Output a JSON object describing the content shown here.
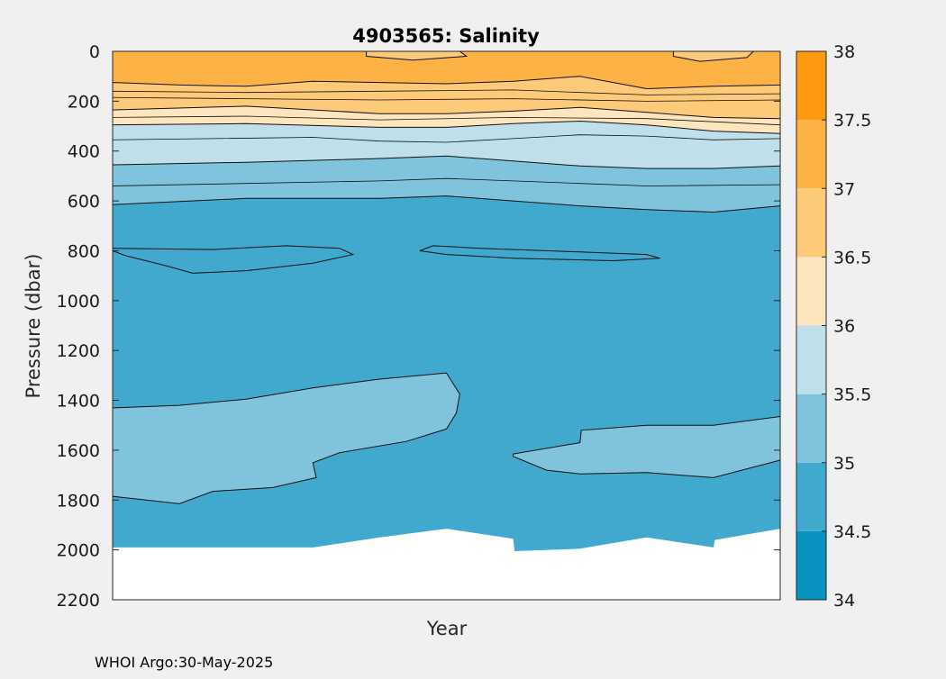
{
  "chart_data": {
    "type": "heatmap",
    "subtype": "filled-contour",
    "title": "4903565:  Salinity",
    "xlabel": "Year",
    "ylabel": "Pressure (dbar)",
    "ylim": [
      0,
      2200
    ],
    "y_reversed": true,
    "y_ticks": [
      0,
      200,
      400,
      600,
      800,
      1000,
      1200,
      1400,
      1600,
      1800,
      2000,
      2200
    ],
    "x_ticks": [],
    "x_domain": [
      0,
      100
    ],
    "grid": false,
    "colorbar": {
      "range": [
        34,
        38
      ],
      "ticks": [
        34,
        34.5,
        35,
        35.5,
        36,
        36.5,
        37,
        37.5,
        38
      ],
      "bins": [
        {
          "min": 34.0,
          "max": 34.5,
          "color": "#0892c0"
        },
        {
          "min": 34.5,
          "max": 35.0,
          "color": "#41a9ce"
        },
        {
          "min": 35.0,
          "max": 35.5,
          "color": "#80c3dd"
        },
        {
          "min": 35.5,
          "max": 36.0,
          "color": "#bfe0eb"
        },
        {
          "min": 36.0,
          "max": 36.5,
          "color": "#fde5bd"
        },
        {
          "min": 36.5,
          "max": 37.0,
          "color": "#fdca7a"
        },
        {
          "min": 37.0,
          "max": 37.5,
          "color": "#fdb246"
        },
        {
          "min": 37.5,
          "max": 38.0,
          "color": "#fd9a10"
        }
      ]
    },
    "bottom_profile": [
      [
        0,
        1990
      ],
      [
        30,
        1990
      ],
      [
        40,
        1950
      ],
      [
        50,
        1915
      ],
      [
        60,
        1955
      ],
      [
        60.2,
        2005
      ],
      [
        70,
        1995
      ],
      [
        80,
        1950
      ],
      [
        90,
        1990
      ],
      [
        90.2,
        1960
      ],
      [
        100,
        1915
      ]
    ],
    "deep_lens_left": [
      [
        0,
        1430
      ],
      [
        10,
        1420
      ],
      [
        20,
        1395
      ],
      [
        30,
        1350
      ],
      [
        40,
        1315
      ],
      [
        50,
        1290
      ],
      [
        52,
        1375
      ],
      [
        51.5,
        1450
      ],
      [
        50,
        1515
      ],
      [
        44,
        1565
      ],
      [
        34,
        1610
      ],
      [
        30,
        1650
      ],
      [
        30.5,
        1710
      ],
      [
        24,
        1750
      ],
      [
        15,
        1765
      ],
      [
        10,
        1815
      ],
      [
        5,
        1800
      ],
      [
        0,
        1785
      ]
    ],
    "deep_lens_right": [
      [
        60,
        1615
      ],
      [
        70,
        1570
      ],
      [
        70.2,
        1520
      ],
      [
        80,
        1500
      ],
      [
        90,
        1500
      ],
      [
        100,
        1465
      ],
      [
        100,
        1640
      ],
      [
        90,
        1710
      ],
      [
        80,
        1690
      ],
      [
        70,
        1695
      ],
      [
        65,
        1680
      ],
      [
        60,
        1625
      ]
    ],
    "mid_wiggle": [
      [
        0,
        790
      ],
      [
        15,
        795
      ],
      [
        26,
        780
      ],
      [
        34,
        790
      ],
      [
        36,
        815
      ],
      [
        30,
        850
      ],
      [
        20,
        880
      ],
      [
        12,
        890
      ],
      [
        8,
        860
      ],
      [
        2,
        820
      ],
      [
        0,
        800
      ]
    ],
    "mid_wiggle_2": [
      [
        48,
        780
      ],
      [
        55,
        790
      ],
      [
        70,
        805
      ],
      [
        80,
        815
      ],
      [
        82,
        830
      ],
      [
        75,
        840
      ],
      [
        60,
        830
      ],
      [
        50,
        815
      ],
      [
        46,
        800
      ]
    ],
    "layers": [
      {
        "value": 35.0,
        "depth": [
          [
            0,
            615
          ],
          [
            20,
            590
          ],
          [
            40,
            590
          ],
          [
            50,
            580
          ],
          [
            60,
            600
          ],
          [
            70,
            620
          ],
          [
            80,
            635
          ],
          [
            90,
            645
          ],
          [
            100,
            620
          ]
        ]
      },
      {
        "value": 35.5,
        "depth": [
          [
            0,
            455
          ],
          [
            20,
            445
          ],
          [
            40,
            430
          ],
          [
            50,
            420
          ],
          [
            60,
            440
          ],
          [
            70,
            460
          ],
          [
            80,
            470
          ],
          [
            90,
            470
          ],
          [
            100,
            460
          ]
        ]
      },
      {
        "value": 36.0,
        "depth": [
          [
            0,
            295
          ],
          [
            20,
            290
          ],
          [
            40,
            305
          ],
          [
            50,
            305
          ],
          [
            60,
            290
          ],
          [
            70,
            280
          ],
          [
            80,
            295
          ],
          [
            90,
            320
          ],
          [
            100,
            330
          ]
        ]
      },
      {
        "value": 36.5,
        "depth": [
          [
            0,
            235
          ],
          [
            20,
            220
          ],
          [
            40,
            250
          ],
          [
            50,
            250
          ],
          [
            60,
            240
          ],
          [
            70,
            225
          ],
          [
            80,
            245
          ],
          [
            90,
            265
          ],
          [
            100,
            270
          ]
        ]
      },
      {
        "value": 37.0,
        "depth": [
          [
            0,
            125
          ],
          [
            10,
            135
          ],
          [
            20,
            140
          ],
          [
            30,
            120
          ],
          [
            40,
            125
          ],
          [
            50,
            130
          ],
          [
            60,
            120
          ],
          [
            70,
            100
          ],
          [
            80,
            150
          ],
          [
            90,
            140
          ],
          [
            100,
            135
          ]
        ]
      },
      {
        "value": 37.5,
        "depth": [
          [
            0,
            0
          ],
          [
            100,
            0
          ]
        ]
      }
    ],
    "shallow_lenses": [
      {
        "value": 37.0,
        "pts": [
          [
            38,
            0
          ],
          [
            52,
            0
          ],
          [
            53,
            20
          ],
          [
            45,
            35
          ],
          [
            38,
            20
          ]
        ]
      },
      {
        "value": 37.0,
        "pts": [
          [
            84,
            0
          ],
          [
            96,
            0
          ],
          [
            95,
            25
          ],
          [
            88,
            40
          ],
          [
            84,
            20
          ]
        ]
      }
    ]
  },
  "credit": "WHOI Argo:30-May-2025"
}
